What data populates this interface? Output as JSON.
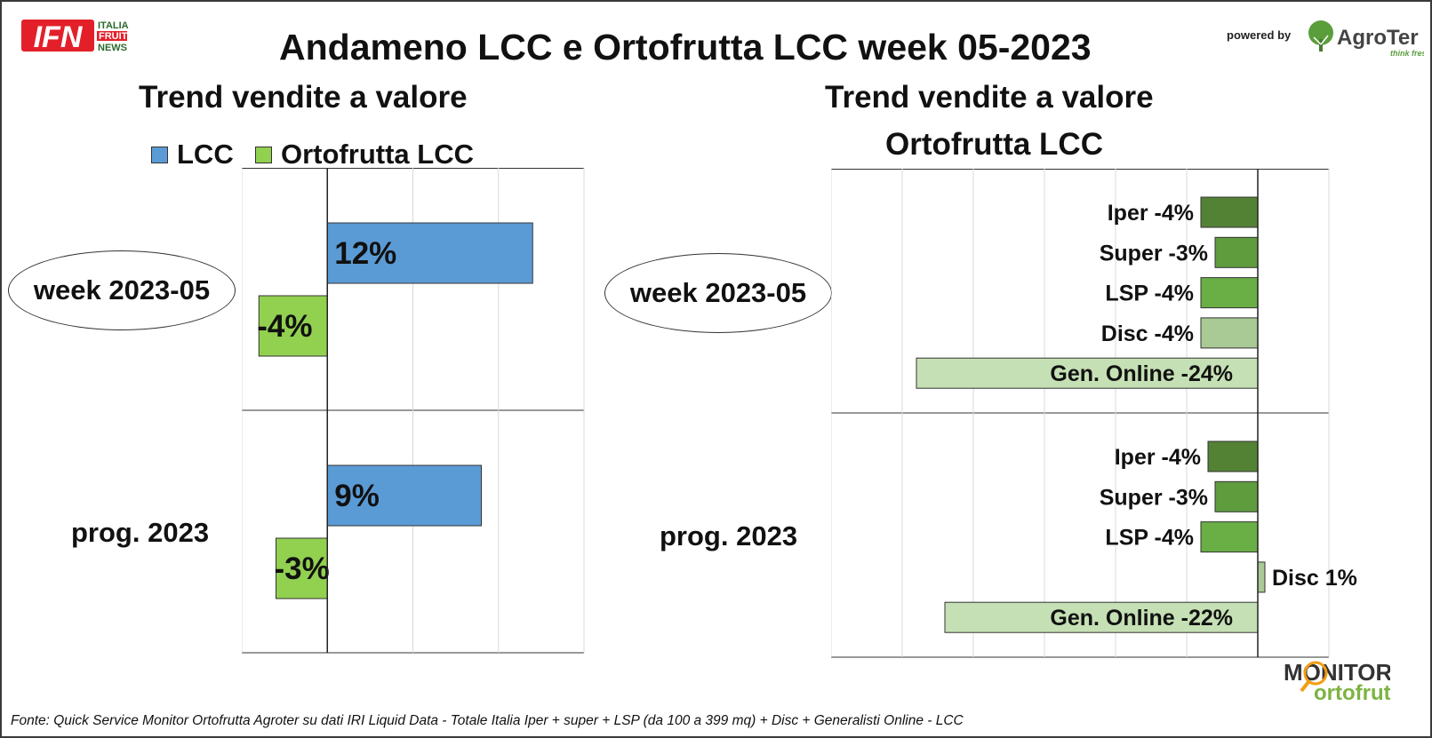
{
  "header": {
    "logo_word": "IFN",
    "logo_line1": "ITALIA",
    "logo_line2": "FRUIT",
    "logo_line3": "NEWS",
    "title": "Andameno LCC e Ortofrutta LCC week 05-2023",
    "powered_by": "powered by",
    "sponsor_name": "AgroTer",
    "sponsor_tagline": "think fresh"
  },
  "left_panel": {
    "subtitle": "Trend vendite a valore",
    "row_label_1": "week 2023-05",
    "row_label_2": "prog. 2023"
  },
  "right_panel": {
    "subtitle_line1": "Trend vendite a valore",
    "subtitle_line2": "Ortofrutta LCC",
    "row_label_1": "week 2023-05",
    "row_label_2": "prog. 2023"
  },
  "footer": {
    "source": "Fonte: Quick Service Monitor Ortofrutta Agroter su dati IRI Liquid Data - Totale Italia Iper + super + LSP (da 100 a 399 mq) + Disc + Generalisti Online - LCC",
    "monitor_logo_line1": "MONITOR",
    "monitor_logo_line2": "ortofrutta"
  },
  "colors": {
    "lcc": "#5b9bd5",
    "ortofrutta": "#92d050",
    "iper": "#548235",
    "super": "#5e9c3e",
    "lsp": "#6aae46",
    "disc": "#a9c995",
    "online": "#c5e0b4",
    "ifn_red": "#e3202a",
    "agroter_green": "#5a9e3c",
    "monitor_orange": "#f39c12"
  },
  "chart_data": [
    {
      "type": "bar",
      "orientation": "horizontal",
      "categories": [
        "week 2023-05",
        "prog. 2023"
      ],
      "series": [
        {
          "name": "LCC",
          "values": [
            12,
            9
          ],
          "labels": [
            "12%",
            "9%"
          ]
        },
        {
          "name": "Ortofrutta LCC",
          "values": [
            -4,
            -3
          ],
          "labels": [
            "-4%",
            "-3%"
          ]
        }
      ],
      "title": "Trend vendite a valore",
      "legend": "top",
      "xlim": [
        -5,
        15
      ],
      "grid": true
    },
    {
      "type": "bar",
      "orientation": "horizontal",
      "title": "Trend vendite a valore Ortofrutta LCC",
      "groups": [
        {
          "category": "week 2023-05",
          "bars": [
            {
              "channel": "Iper",
              "value": -4,
              "label": "Iper -4%"
            },
            {
              "channel": "Super",
              "value": -3,
              "label": "Super -3%"
            },
            {
              "channel": "LSP",
              "value": -4,
              "label": "LSP -4%"
            },
            {
              "channel": "Disc",
              "value": -4,
              "label": "Disc -4%"
            },
            {
              "channel": "Gen. Online",
              "value": -24,
              "label": "Gen. Online -24%"
            }
          ]
        },
        {
          "category": "prog. 2023",
          "bars": [
            {
              "channel": "Iper",
              "value": -3.5,
              "label": "Iper -4%"
            },
            {
              "channel": "Super",
              "value": -3,
              "label": "Super -3%"
            },
            {
              "channel": "LSP",
              "value": -4,
              "label": "LSP -4%"
            },
            {
              "channel": "Disc",
              "value": 0.5,
              "label": "Disc 1%"
            },
            {
              "channel": "Gen. Online",
              "value": -22,
              "label": "Gen. Online -22%"
            }
          ]
        }
      ],
      "xlim": [
        -30,
        5
      ],
      "grid": true
    }
  ]
}
